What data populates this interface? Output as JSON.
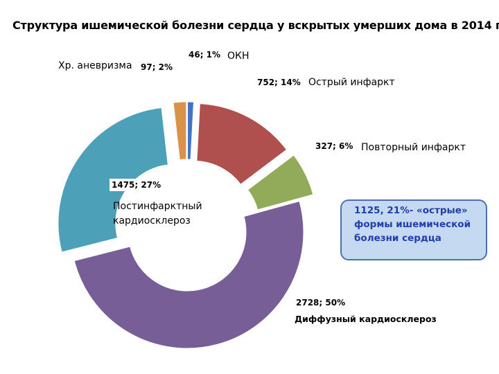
{
  "title": "Структура  ишемической болезни сердца у вскрытых умерших дома в 2014 г.",
  "callout": "1125, 21%-  «острые» формы ишемической болезни сердца",
  "chart_data": {
    "type": "pie",
    "variant": "exploded-doughnut",
    "title": "Структура  ишемической болезни сердца у вскрытых умерших дома в 2014 г.",
    "series": [
      {
        "name": "ОКН",
        "value": 46,
        "percent": 1,
        "label": "46; 1%",
        "color": "#4472c4"
      },
      {
        "name": "Острый инфаркт",
        "value": 752,
        "percent": 14,
        "label": "752; 14%",
        "color": "#b0504e"
      },
      {
        "name": "Повторный инфаркт",
        "value": 327,
        "percent": 6,
        "label": "327; 6%",
        "color": "#92ab5a"
      },
      {
        "name": "Диффузный кардиосклероз",
        "value": 2728,
        "percent": 50,
        "label": "2728; 50%",
        "color": "#775e96"
      },
      {
        "name": "Постинфарктный кардиосклероз",
        "value": 1475,
        "percent": 27,
        "label": "1475; 27%",
        "color": "#4ca0b8"
      },
      {
        "name": "Хр. аневризма",
        "value": 97,
        "percent": 2,
        "label": "97; 2%",
        "color": "#d8924a"
      }
    ],
    "legend": "none"
  }
}
